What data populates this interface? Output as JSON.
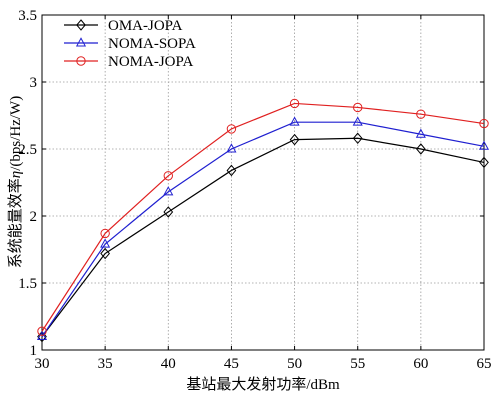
{
  "chart_data": {
    "type": "line",
    "title": "",
    "xlabel": "基站最大发射功率/dBm",
    "ylabel_prefix": "系统能量效率",
    "ylabel_symbol": "η",
    "ylabel_suffix": "/(bps/Hz/W)",
    "xlim": [
      30,
      65
    ],
    "ylim": [
      1,
      3.5
    ],
    "x_ticks": [
      30,
      35,
      40,
      45,
      50,
      55,
      60,
      65
    ],
    "y_ticks": [
      1,
      1.5,
      2,
      2.5,
      3,
      3.5
    ],
    "y_tick_labels": [
      "1",
      "1.5",
      "2",
      "2.5",
      "3",
      "3.5"
    ],
    "grid": true,
    "legend_position": "top-left",
    "x": [
      30,
      35,
      40,
      45,
      50,
      55,
      60,
      65
    ],
    "series": [
      {
        "name": "OMA-JOPA",
        "color": "#000000",
        "marker": "diamond",
        "values": [
          1.1,
          1.72,
          2.03,
          2.34,
          2.57,
          2.58,
          2.5,
          2.4
        ]
      },
      {
        "name": "NOMA-SOPA",
        "color": "#1f1fd0",
        "marker": "triangle",
        "values": [
          1.1,
          1.79,
          2.18,
          2.5,
          2.7,
          2.7,
          2.61,
          2.52
        ]
      },
      {
        "name": "NOMA-JOPA",
        "color": "#e02020",
        "marker": "circle",
        "values": [
          1.14,
          1.87,
          2.3,
          2.65,
          2.84,
          2.81,
          2.76,
          2.69
        ]
      }
    ]
  }
}
